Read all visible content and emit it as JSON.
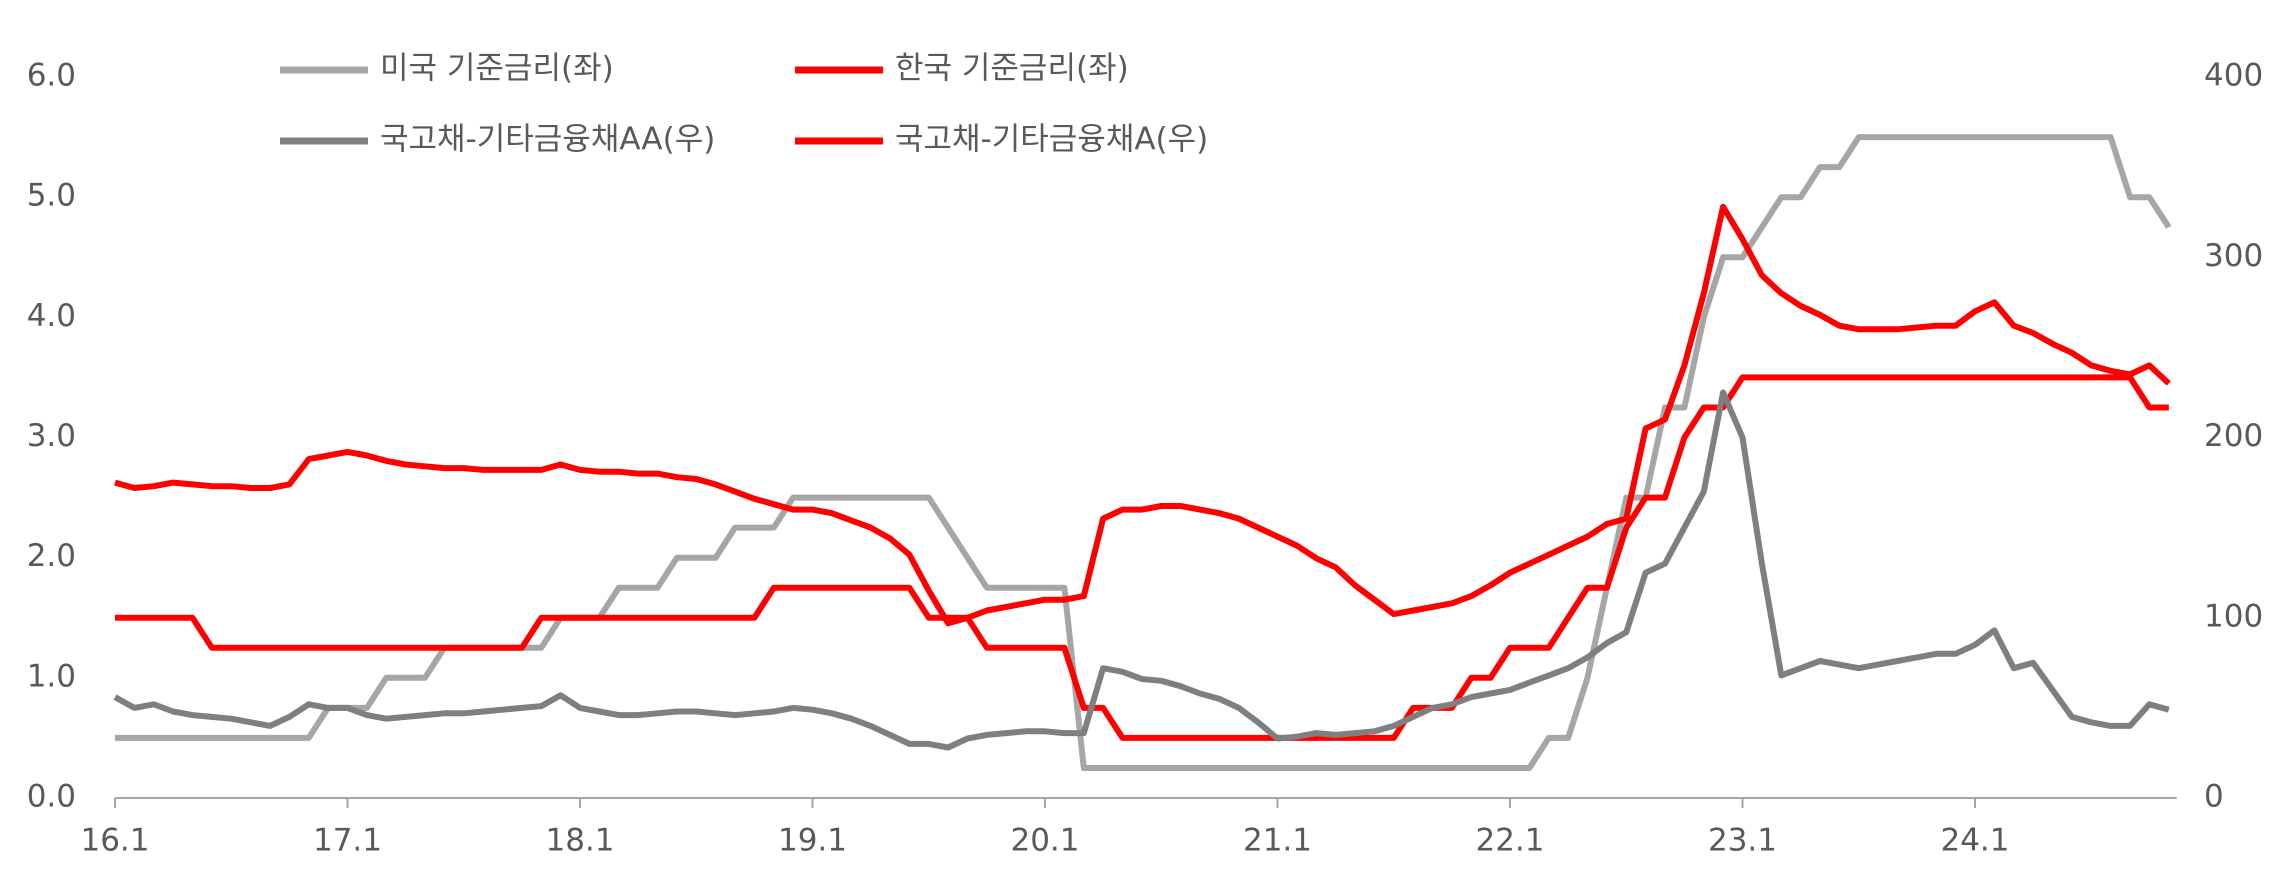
{
  "chart_data": {
    "type": "line",
    "x": [
      "16.1",
      "16.2",
      "16.3",
      "16.4",
      "16.5",
      "16.6",
      "16.7",
      "16.8",
      "16.9",
      "16.10",
      "16.11",
      "16.12",
      "17.1",
      "17.2",
      "17.3",
      "17.4",
      "17.5",
      "17.6",
      "17.7",
      "17.8",
      "17.9",
      "17.10",
      "17.11",
      "17.12",
      "18.1",
      "18.2",
      "18.3",
      "18.4",
      "18.5",
      "18.6",
      "18.7",
      "18.8",
      "18.9",
      "18.10",
      "18.11",
      "18.12",
      "19.1",
      "19.2",
      "19.3",
      "19.4",
      "19.5",
      "19.6",
      "19.7",
      "19.8",
      "19.9",
      "19.10",
      "19.11",
      "19.12",
      "20.1",
      "20.2",
      "20.3",
      "20.4",
      "20.5",
      "20.6",
      "20.7",
      "20.8",
      "20.9",
      "20.10",
      "20.11",
      "20.12",
      "21.1",
      "21.2",
      "21.3",
      "21.4",
      "21.5",
      "21.6",
      "21.7",
      "21.8",
      "21.9",
      "21.10",
      "21.11",
      "21.12",
      "22.1",
      "22.2",
      "22.3",
      "22.4",
      "22.5",
      "22.6",
      "22.7",
      "22.8",
      "22.9",
      "22.10",
      "22.11",
      "22.12",
      "23.1",
      "23.2",
      "23.3",
      "23.4",
      "23.5",
      "23.6",
      "23.7",
      "23.8",
      "23.9",
      "23.10",
      "23.11",
      "23.12",
      "24.1",
      "24.2",
      "24.3",
      "24.4",
      "24.5",
      "24.6",
      "24.7",
      "24.8",
      "24.9",
      "24.10",
      "24.11"
    ],
    "xticks": [
      "16.1",
      "17.1",
      "18.1",
      "19.1",
      "20.1",
      "21.1",
      "22.1",
      "23.1",
      "24.1"
    ],
    "ylim": [
      0,
      6
    ],
    "yticks": [
      {
        "value": 0,
        "label": "0.0"
      },
      {
        "value": 1,
        "label": "1.0"
      },
      {
        "value": 2,
        "label": "2.0"
      },
      {
        "value": 3,
        "label": "3.0"
      },
      {
        "value": 4,
        "label": "4.0"
      },
      {
        "value": 5,
        "label": "5.0"
      },
      {
        "value": 6,
        "label": "6.0"
      }
    ],
    "y2lim": [
      0,
      400
    ],
    "y2ticks": [
      0,
      100,
      200,
      300,
      400
    ],
    "series": [
      {
        "name": "미국 기준금리(좌)",
        "color": "#a6a6a6",
        "values": [
          0.5,
          0.5,
          0.5,
          0.5,
          0.5,
          0.5,
          0.5,
          0.5,
          0.5,
          0.5,
          0.5,
          0.75,
          0.75,
          0.75,
          1.0,
          1.0,
          1.0,
          1.25,
          1.25,
          1.25,
          1.25,
          1.25,
          1.25,
          1.5,
          1.5,
          1.5,
          1.75,
          1.75,
          1.75,
          2.0,
          2.0,
          2.0,
          2.25,
          2.25,
          2.25,
          2.5,
          2.5,
          2.5,
          2.5,
          2.5,
          2.5,
          2.5,
          2.5,
          2.25,
          2.0,
          1.75,
          1.75,
          1.75,
          1.75,
          1.75,
          0.25,
          0.25,
          0.25,
          0.25,
          0.25,
          0.25,
          0.25,
          0.25,
          0.25,
          0.25,
          0.25,
          0.25,
          0.25,
          0.25,
          0.25,
          0.25,
          0.25,
          0.25,
          0.25,
          0.25,
          0.25,
          0.25,
          0.25,
          0.25,
          0.5,
          0.5,
          1.0,
          1.75,
          2.5,
          2.5,
          3.25,
          3.25,
          4.0,
          4.5,
          4.5,
          4.75,
          5.0,
          5.0,
          5.25,
          5.25,
          5.5,
          5.5,
          5.5,
          5.5,
          5.5,
          5.5,
          5.5,
          5.5,
          5.5,
          5.5,
          5.5,
          5.5,
          5.5,
          5.5,
          5.0,
          5.0,
          4.75
        ]
      },
      {
        "name": "한국 기준금리(좌)",
        "color": "#ff0000",
        "values": [
          1.5,
          1.5,
          1.5,
          1.5,
          1.5,
          1.25,
          1.25,
          1.25,
          1.25,
          1.25,
          1.25,
          1.25,
          1.25,
          1.25,
          1.25,
          1.25,
          1.25,
          1.25,
          1.25,
          1.25,
          1.25,
          1.25,
          1.5,
          1.5,
          1.5,
          1.5,
          1.5,
          1.5,
          1.5,
          1.5,
          1.5,
          1.5,
          1.5,
          1.5,
          1.75,
          1.75,
          1.75,
          1.75,
          1.75,
          1.75,
          1.75,
          1.75,
          1.5,
          1.5,
          1.5,
          1.25,
          1.25,
          1.25,
          1.25,
          1.25,
          0.75,
          0.75,
          0.5,
          0.5,
          0.5,
          0.5,
          0.5,
          0.5,
          0.5,
          0.5,
          0.5,
          0.5,
          0.5,
          0.5,
          0.5,
          0.5,
          0.5,
          0.75,
          0.75,
          0.75,
          1.0,
          1.0,
          1.25,
          1.25,
          1.25,
          1.5,
          1.75,
          1.75,
          2.25,
          2.5,
          2.5,
          3.0,
          3.25,
          3.25,
          3.5,
          3.5,
          3.5,
          3.5,
          3.5,
          3.5,
          3.5,
          3.5,
          3.5,
          3.5,
          3.5,
          3.5,
          3.5,
          3.5,
          3.5,
          3.5,
          3.5,
          3.5,
          3.5,
          3.5,
          3.5,
          3.25,
          3.25
        ]
      },
      {
        "name": "국고채-기타금융채AA(우)",
        "color": "#7f7f7f",
        "axis": "y2",
        "values": [
          56,
          50,
          52,
          48,
          46,
          45,
          44,
          42,
          40,
          45,
          52,
          50,
          50,
          46,
          44,
          45,
          46,
          47,
          47,
          48,
          49,
          50,
          51,
          57,
          50,
          48,
          46,
          46,
          47,
          48,
          48,
          47,
          46,
          47,
          48,
          50,
          49,
          47,
          44,
          40,
          35,
          30,
          30,
          28,
          33,
          35,
          36,
          37,
          37,
          36,
          36,
          72,
          70,
          66,
          65,
          62,
          58,
          55,
          50,
          42,
          33,
          34,
          36,
          35,
          36,
          37,
          40,
          45,
          50,
          52,
          56,
          58,
          60,
          64,
          68,
          72,
          78,
          86,
          92,
          125,
          130,
          150,
          170,
          225,
          200,
          130,
          68,
          72,
          76,
          74,
          72,
          74,
          76,
          78,
          80,
          80,
          85,
          93,
          72,
          75,
          60,
          45,
          42,
          40,
          40,
          52,
          49
        ]
      },
      {
        "name": "국고채-기타금융채A(우)",
        "color": "#ff0000",
        "axis": "y2",
        "values": [
          175,
          172,
          173,
          175,
          174,
          173,
          173,
          172,
          172,
          174,
          188,
          190,
          192,
          190,
          187,
          185,
          184,
          183,
          183,
          182,
          182,
          182,
          182,
          185,
          182,
          181,
          181,
          180,
          180,
          178,
          177,
          174,
          170,
          166,
          163,
          160,
          160,
          158,
          154,
          150,
          144,
          135,
          115,
          97,
          100,
          104,
          106,
          108,
          110,
          110,
          112,
          155,
          160,
          160,
          162,
          162,
          160,
          158,
          155,
          150,
          145,
          140,
          133,
          128,
          118,
          110,
          102,
          104,
          106,
          108,
          112,
          118,
          125,
          130,
          135,
          140,
          145,
          152,
          155,
          205,
          210,
          240,
          280,
          328,
          310,
          290,
          280,
          273,
          268,
          262,
          260,
          260,
          260,
          261,
          262,
          262,
          270,
          275,
          262,
          258,
          252,
          247,
          240,
          237,
          235,
          240,
          230
        ]
      }
    ]
  }
}
